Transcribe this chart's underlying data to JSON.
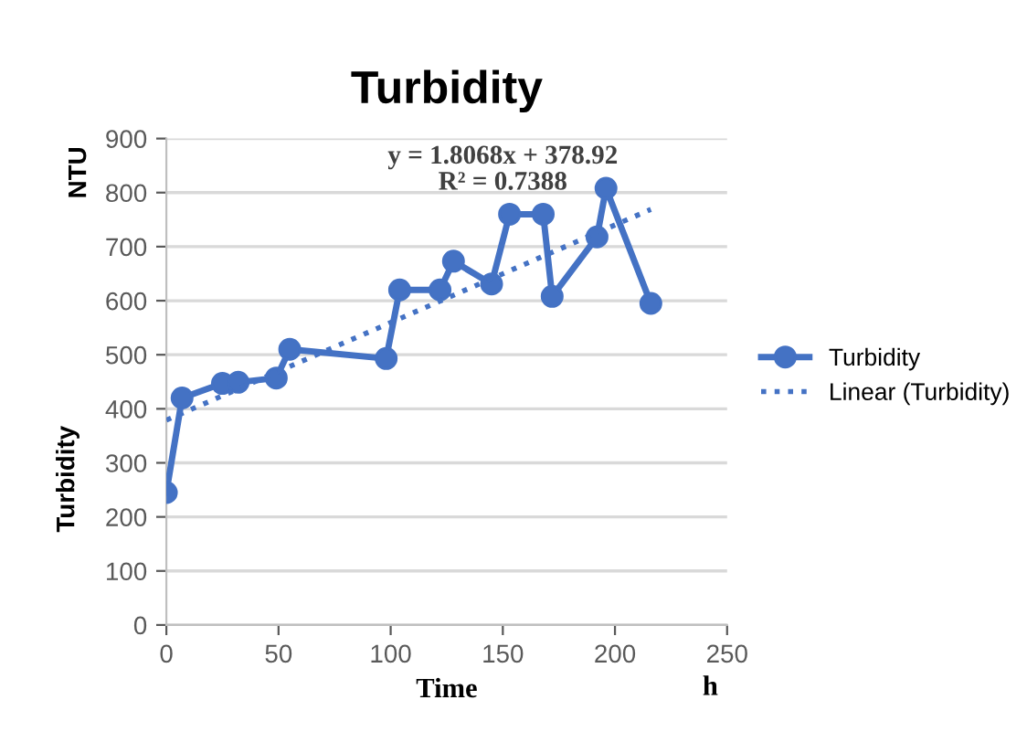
{
  "chart_data": {
    "type": "line",
    "title": "Turbidity",
    "xlabel": "Time",
    "ylabel": "Turbidity",
    "annotations": [
      "NTU",
      "h",
      "y = 1.8068x + 378.92\nR² = 0.7388"
    ],
    "xlim": [
      0,
      250
    ],
    "xticks": [
      0,
      50,
      100,
      150,
      200,
      250
    ],
    "ylim": [
      0,
      900
    ],
    "yticks": [
      0,
      100,
      200,
      300,
      400,
      500,
      600,
      700,
      800,
      900
    ],
    "grid": "y",
    "legend": "right",
    "marker": "circle",
    "series": [
      {
        "name": "Turbidity",
        "color": "#4472c4",
        "x": [
          0,
          7,
          25,
          32,
          49,
          55,
          98,
          104,
          122,
          128,
          145,
          153,
          168,
          172,
          192,
          196,
          216
        ],
        "values": [
          245,
          420,
          447,
          449,
          457,
          510,
          493,
          620,
          620,
          673,
          631,
          760,
          760,
          608,
          718,
          808,
          595
        ]
      },
      {
        "name": "Linear (Turbidity)",
        "color": "#4472c4",
        "type": "line",
        "marker": "none",
        "line_style": "dotted",
        "x": [
          0,
          216
        ],
        "values": [
          379,
          769
        ]
      }
    ]
  }
}
